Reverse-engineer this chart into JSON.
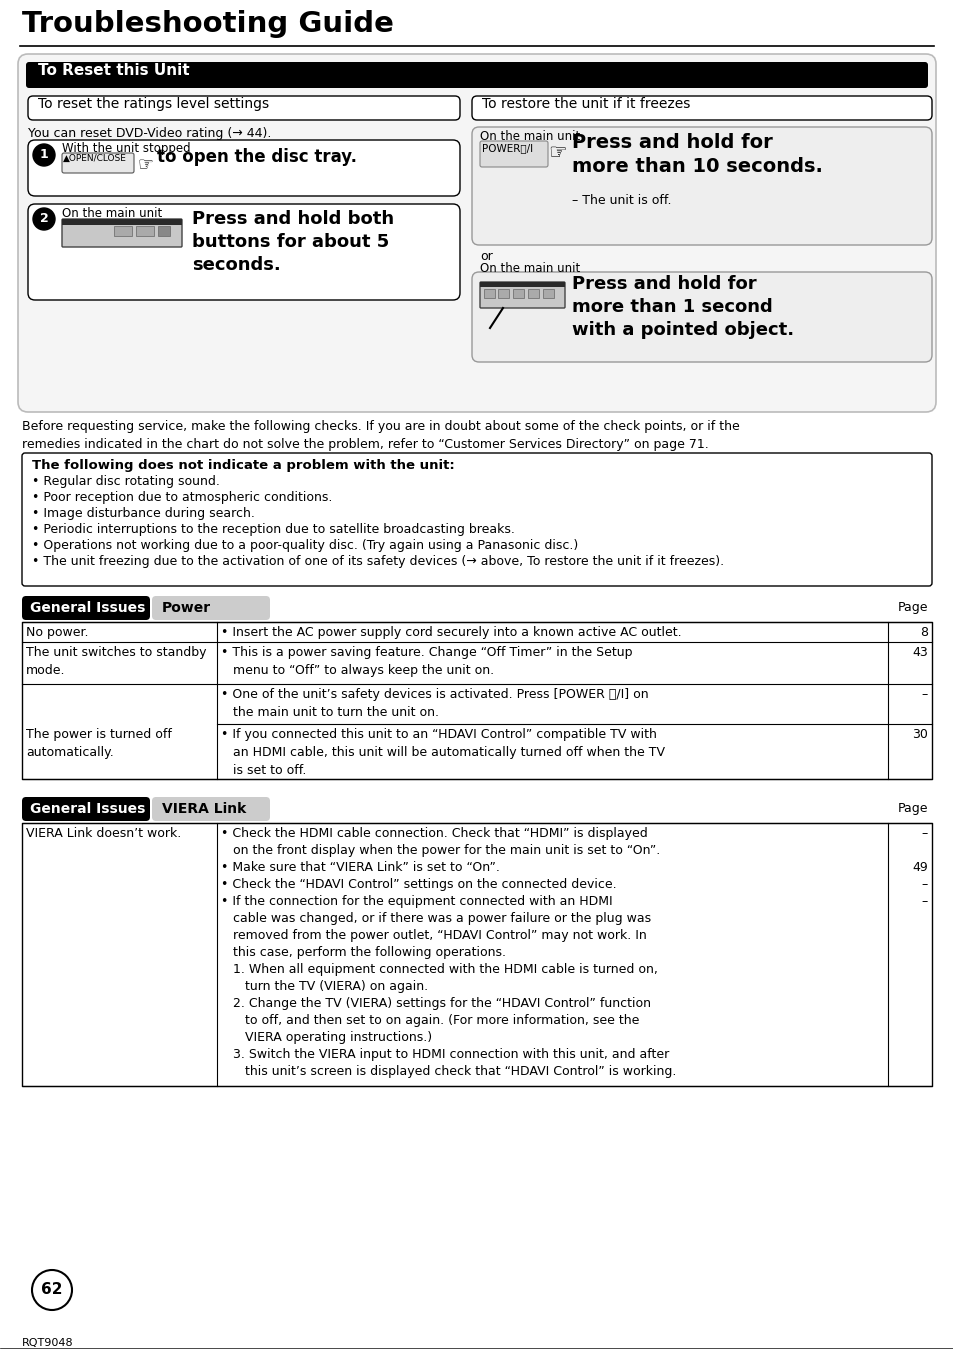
{
  "title": "Troubleshooting Guide",
  "bg_color": "#ffffff",
  "reset_header": "To Reset this Unit",
  "reset_left_title": "To reset the ratings level settings",
  "reset_right_title": "To restore the unit if it freezes",
  "reset_left_sub": "You can reset DVD-Video rating (→ 44).",
  "step1_label": "With the unit stopped",
  "step1_text": "to open the disc tray.",
  "step2_label": "On the main unit",
  "step2_text": "Press and hold both\nbuttons for about 5\nseconds.",
  "right_top_label": "On the main unit",
  "right_top_text": "Press and hold for\nmore than 10 seconds.",
  "right_top_sub": "– The unit is off.",
  "right_or": "or",
  "right_bottom_label": "On the main unit",
  "right_bottom_text": "Press and hold for\nmore than 1 second\nwith a pointed object.",
  "before_text": "Before requesting service, make the following checks. If you are in doubt about some of the check points, or if the\nremedies indicated in the chart do not solve the problem, refer to “Customer Services Directory” on page 71.",
  "warning_box_title": "The following does not indicate a problem with the unit:",
  "warning_items": [
    "Regular disc rotating sound.",
    "Poor reception due to atmospheric conditions.",
    "Image disturbance during search.",
    "Periodic interruptions to the reception due to satellite broadcasting breaks.",
    "Operations not working due to a poor-quality disc. (Try again using a Panasonic disc.)",
    "The unit freezing due to the activation of one of its safety devices (→ above, To restore the unit if it freezes)."
  ],
  "general_issues_label": "General Issues",
  "power_label": "Power",
  "viera_label": "VIERA Link",
  "page_label": "Page",
  "page_number": "62",
  "footer_code": "RQT9048"
}
